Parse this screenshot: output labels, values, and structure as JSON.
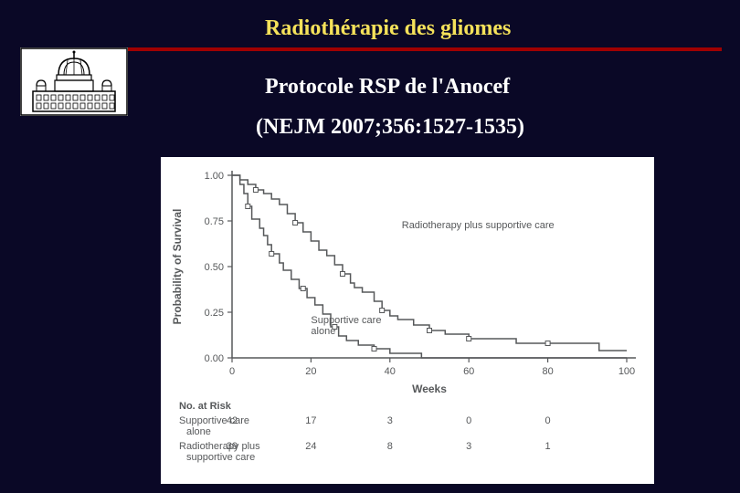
{
  "header": {
    "title": "Radiothérapie des gliomes",
    "subtitle1": "Protocole RSP de l'Anocef",
    "subtitle2": "(NEJM 2007;356:1527-1535)"
  },
  "chart": {
    "type": "step-line",
    "background_color": "#ffffff",
    "axis_color": "#56585a",
    "line_color": "#56585a",
    "marker_color": "#56585a",
    "text_color": "#56585a",
    "font_family": "Arial, Helvetica, sans-serif",
    "ylabel": "Probability of Survival",
    "ylabel_fontsize": 12,
    "xlabel": "Weeks",
    "xlabel_fontsize": 12,
    "title_fontsize": 12,
    "xlim": [
      0,
      100
    ],
    "ylim": [
      0,
      1.0
    ],
    "xticks": [
      0,
      20,
      40,
      60,
      80,
      100
    ],
    "yticks": [
      0.0,
      0.25,
      0.5,
      0.75,
      1.0
    ],
    "ytick_labels": [
      "0.00",
      "0.25",
      "0.50",
      "0.75",
      "1.00"
    ],
    "line_width": 1.5,
    "series": [
      {
        "name": "Radiotherapy plus supportive care",
        "label_xy": [
          43,
          0.71
        ],
        "steps": [
          [
            0,
            1.0
          ],
          [
            2,
            0.975
          ],
          [
            4,
            0.95
          ],
          [
            6,
            0.92
          ],
          [
            8,
            0.9
          ],
          [
            10,
            0.87
          ],
          [
            12,
            0.84
          ],
          [
            14,
            0.79
          ],
          [
            16,
            0.74
          ],
          [
            18,
            0.69
          ],
          [
            20,
            0.64
          ],
          [
            22,
            0.59
          ],
          [
            24,
            0.56
          ],
          [
            26,
            0.51
          ],
          [
            28,
            0.46
          ],
          [
            30,
            0.41
          ],
          [
            31,
            0.385
          ],
          [
            33,
            0.36
          ],
          [
            36,
            0.31
          ],
          [
            38,
            0.26
          ],
          [
            40,
            0.23
          ],
          [
            42,
            0.21
          ],
          [
            46,
            0.18
          ],
          [
            50,
            0.15
          ],
          [
            54,
            0.13
          ],
          [
            60,
            0.105
          ],
          [
            66,
            0.105
          ],
          [
            72,
            0.08
          ],
          [
            80,
            0.08
          ],
          [
            88,
            0.08
          ],
          [
            93,
            0.04
          ],
          [
            100,
            0.04
          ]
        ],
        "markers_x": [
          6,
          16,
          28,
          38,
          50,
          60,
          80
        ]
      },
      {
        "name": "Supportive care alone",
        "label_xy": [
          20,
          0.19
        ],
        "steps": [
          [
            0,
            1.0
          ],
          [
            2,
            0.95
          ],
          [
            3,
            0.9
          ],
          [
            4,
            0.83
          ],
          [
            5,
            0.76
          ],
          [
            7,
            0.71
          ],
          [
            8,
            0.67
          ],
          [
            9,
            0.62
          ],
          [
            10,
            0.57
          ],
          [
            12,
            0.52
          ],
          [
            13,
            0.48
          ],
          [
            15,
            0.43
          ],
          [
            17,
            0.38
          ],
          [
            19,
            0.33
          ],
          [
            21,
            0.29
          ],
          [
            23,
            0.24
          ],
          [
            25,
            0.17
          ],
          [
            27,
            0.12
          ],
          [
            29,
            0.095
          ],
          [
            32,
            0.07
          ],
          [
            36,
            0.05
          ],
          [
            40,
            0.025
          ],
          [
            44,
            0.025
          ],
          [
            48,
            0.0
          ],
          [
            100,
            0.0
          ]
        ],
        "markers_x": [
          4,
          10,
          18,
          26,
          36
        ]
      }
    ],
    "risk_table": {
      "title": "No. at Risk",
      "xpositions": [
        0,
        20,
        40,
        60,
        80
      ],
      "rows": [
        {
          "label": "Supportive care alone",
          "counts": [
            42,
            17,
            3,
            0,
            0
          ]
        },
        {
          "label": "Radiotherapy plus supportive care",
          "counts": [
            39,
            24,
            8,
            3,
            1
          ]
        }
      ]
    }
  },
  "colors": {
    "page_bg": "#0a0826",
    "header_text": "#f5e25a",
    "rule": "#a00000",
    "subtitle_text": "#ffffff"
  }
}
